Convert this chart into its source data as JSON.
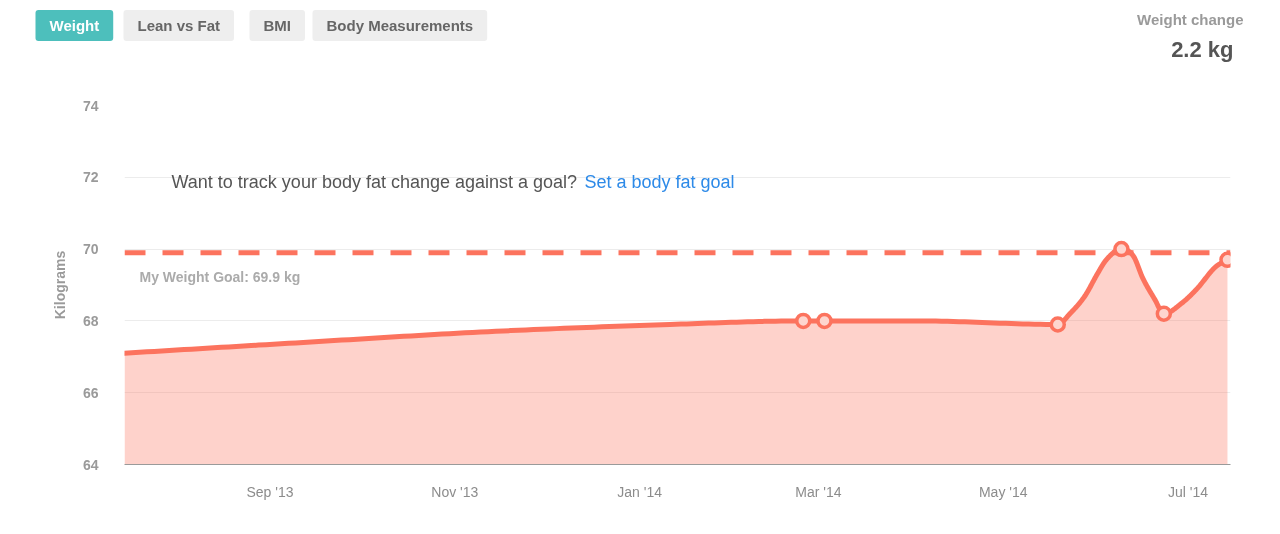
{
  "chart_data": {
    "type": "area",
    "ylabel": "Kilograms",
    "annotations": [
      "Weight",
      "Lean vs Fat",
      "BMI",
      "Body Measurements",
      "Weight change",
      "2.2 kg",
      "Want to track your body fat change against a goal?",
      "Set a body fat goal"
    ],
    "xlim": [
      "2013-07-15",
      "2014-07-15"
    ],
    "xticks": [
      {
        "value": "2013-09-01",
        "label": "Sep '13"
      },
      {
        "value": "2013-11-01",
        "label": "Nov '13"
      },
      {
        "value": "2014-01-01",
        "label": "Jan '14"
      },
      {
        "value": "2014-03-01",
        "label": "Mar '14"
      },
      {
        "value": "2014-05-01",
        "label": "May '14"
      },
      {
        "value": "2014-07-01",
        "label": "Jul '14"
      }
    ],
    "ylim": [
      64,
      74
    ],
    "yticks": [
      64,
      66,
      68,
      70,
      72,
      74
    ],
    "grid": "y",
    "ref_lines": [
      {
        "axis": "y",
        "value": 69.9,
        "label": "My Weight Goal: 69.9 kg",
        "color": "#fc735e",
        "line_style": "dashed"
      }
    ],
    "series": [
      {
        "color": "#fc735e",
        "x": [
          "2013-07-15",
          "2013-09-12",
          "2013-11-12",
          "2014-01-11",
          "2014-02-24",
          "2014-03-03",
          "2014-04-03",
          "2014-05-19",
          "2014-05-23",
          "2014-05-28",
          "2014-06-01",
          "2014-06-04",
          "2014-06-09",
          "2014-06-13",
          "2014-06-16",
          "2014-06-20",
          "2014-06-23",
          "2014-06-29",
          "2014-07-04",
          "2014-07-10",
          "2014-07-14"
        ],
        "values": [
          67.1,
          67.4,
          67.7,
          67.9,
          68.0,
          68.0,
          68.0,
          67.9,
          68.2,
          68.7,
          69.3,
          69.7,
          70.0,
          69.8,
          69.2,
          68.6,
          68.2,
          68.5,
          68.9,
          69.5,
          69.7
        ]
      },
      {
        "type": "scatter",
        "marker": "circle",
        "color": "#fc735e",
        "x": [
          "2014-02-24",
          "2014-03-03",
          "2014-05-19",
          "2014-06-09",
          "2014-06-23",
          "2014-07-14"
        ],
        "values": [
          68.0,
          68.0,
          67.9,
          70.0,
          68.2,
          69.7
        ]
      }
    ]
  }
}
